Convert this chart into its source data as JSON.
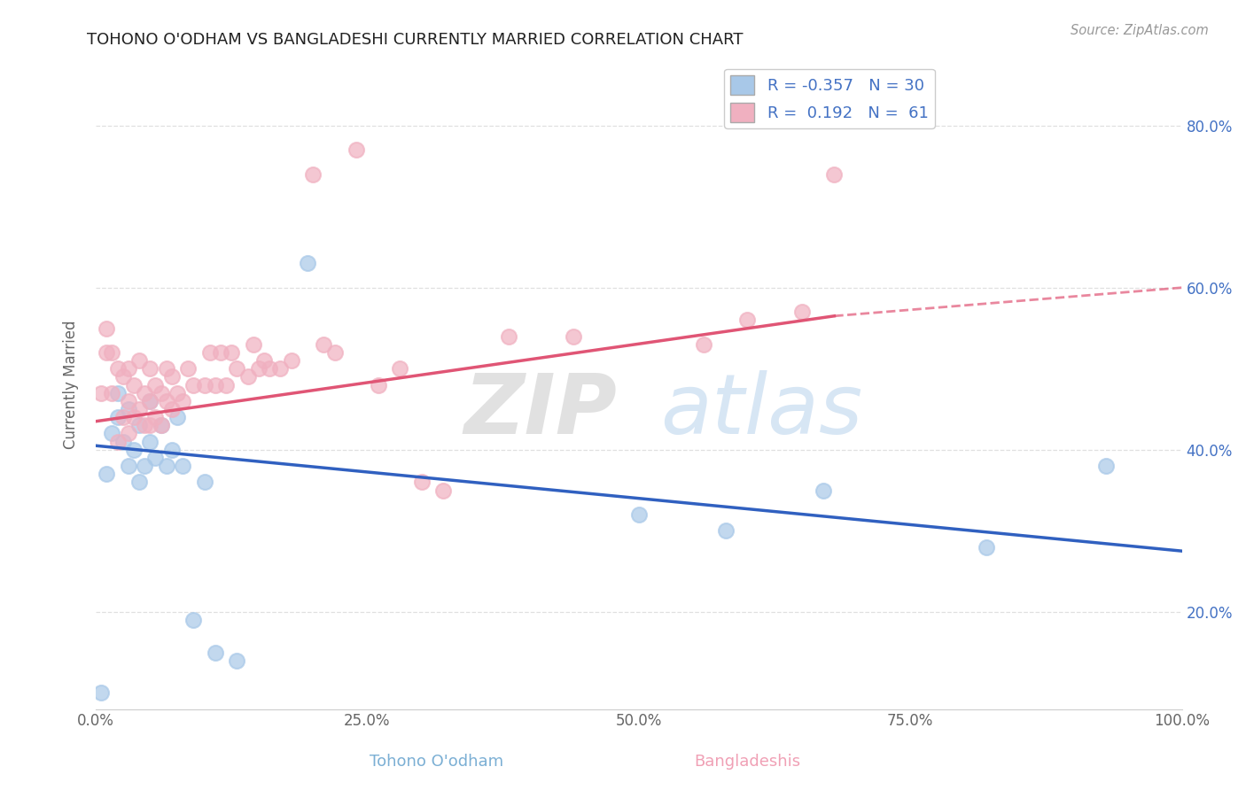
{
  "title": "TOHONO O'ODHAM VS BANGLADESHI CURRENTLY MARRIED CORRELATION CHART",
  "source_text": "Source: ZipAtlas.com",
  "xlabel_blue": "Tohono O'odham",
  "xlabel_pink": "Bangladeshis",
  "ylabel": "Currently Married",
  "blue_R": -0.357,
  "blue_N": 30,
  "pink_R": 0.192,
  "pink_N": 61,
  "blue_color": "#a8c8e8",
  "pink_color": "#f0b0c0",
  "blue_line_color": "#3060c0",
  "pink_line_color": "#e05575",
  "watermark_zip": "ZIP",
  "watermark_atlas": "atlas",
  "xlim": [
    0.0,
    1.0
  ],
  "ylim": [
    0.08,
    0.88
  ],
  "yticks": [
    0.2,
    0.4,
    0.6,
    0.8
  ],
  "xticks": [
    0.0,
    0.25,
    0.5,
    0.75,
    1.0
  ],
  "blue_x": [
    0.005,
    0.01,
    0.015,
    0.02,
    0.02,
    0.025,
    0.03,
    0.03,
    0.035,
    0.04,
    0.04,
    0.045,
    0.05,
    0.05,
    0.055,
    0.06,
    0.065,
    0.07,
    0.075,
    0.08,
    0.09,
    0.1,
    0.11,
    0.13,
    0.195,
    0.5,
    0.58,
    0.67,
    0.82,
    0.93
  ],
  "blue_y": [
    0.1,
    0.37,
    0.42,
    0.44,
    0.47,
    0.41,
    0.38,
    0.45,
    0.4,
    0.36,
    0.43,
    0.38,
    0.41,
    0.46,
    0.39,
    0.43,
    0.38,
    0.4,
    0.44,
    0.38,
    0.19,
    0.36,
    0.15,
    0.14,
    0.63,
    0.32,
    0.3,
    0.35,
    0.28,
    0.38
  ],
  "pink_x": [
    0.005,
    0.01,
    0.01,
    0.015,
    0.015,
    0.02,
    0.02,
    0.025,
    0.025,
    0.03,
    0.03,
    0.03,
    0.035,
    0.035,
    0.04,
    0.04,
    0.045,
    0.045,
    0.05,
    0.05,
    0.05,
    0.055,
    0.055,
    0.06,
    0.06,
    0.065,
    0.065,
    0.07,
    0.07,
    0.075,
    0.08,
    0.085,
    0.09,
    0.1,
    0.105,
    0.11,
    0.115,
    0.12,
    0.125,
    0.13,
    0.14,
    0.145,
    0.15,
    0.155,
    0.16,
    0.17,
    0.18,
    0.2,
    0.21,
    0.22,
    0.24,
    0.26,
    0.28,
    0.3,
    0.32,
    0.38,
    0.44,
    0.56,
    0.6,
    0.65,
    0.68
  ],
  "pink_y": [
    0.47,
    0.52,
    0.55,
    0.47,
    0.52,
    0.41,
    0.5,
    0.44,
    0.49,
    0.42,
    0.46,
    0.5,
    0.44,
    0.48,
    0.45,
    0.51,
    0.43,
    0.47,
    0.43,
    0.46,
    0.5,
    0.44,
    0.48,
    0.43,
    0.47,
    0.46,
    0.5,
    0.45,
    0.49,
    0.47,
    0.46,
    0.5,
    0.48,
    0.48,
    0.52,
    0.48,
    0.52,
    0.48,
    0.52,
    0.5,
    0.49,
    0.53,
    0.5,
    0.51,
    0.5,
    0.5,
    0.51,
    0.74,
    0.53,
    0.52,
    0.77,
    0.48,
    0.5,
    0.36,
    0.35,
    0.54,
    0.54,
    0.53,
    0.56,
    0.57,
    0.74
  ],
  "background_color": "#ffffff",
  "grid_color": "#e0e0e0",
  "blue_line_start_x": 0.0,
  "blue_line_end_x": 1.0,
  "blue_line_start_y": 0.405,
  "blue_line_end_y": 0.275,
  "pink_line_start_x": 0.0,
  "pink_line_end_x": 0.68,
  "pink_line_dash_end_x": 1.0,
  "pink_line_start_y": 0.435,
  "pink_line_end_y": 0.565,
  "pink_line_dash_end_y": 0.6
}
